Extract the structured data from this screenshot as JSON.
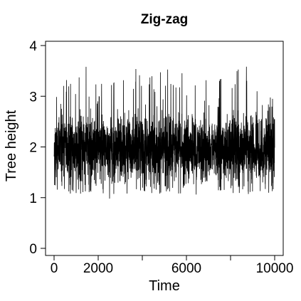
{
  "chart_data": {
    "type": "line",
    "title": "Zig-zag",
    "xlabel": "Time",
    "ylabel": "Tree height",
    "xlim": [
      0,
      10000
    ],
    "ylim": [
      0,
      4
    ],
    "x_ticks": [
      0,
      2000,
      6000,
      10000
    ],
    "x_tick_labels": [
      "0",
      "2000",
      "6000",
      "10000"
    ],
    "x_minor_ticks": [
      4000,
      8000
    ],
    "y_ticks": [
      0,
      1,
      2,
      3,
      4
    ],
    "y_tick_labels": [
      "0",
      "1",
      "2",
      "3",
      "4"
    ],
    "grid": false,
    "series": [
      {
        "color": "#000000",
        "trace_profile": [
          {
            "x": 0,
            "y": 1.95,
            "low": 1.15,
            "high": 3.2
          },
          {
            "x": 500,
            "y": 1.95,
            "low": 0.95,
            "high": 3.3
          },
          {
            "x": 1000,
            "y": 1.95,
            "low": 1.0,
            "high": 3.55
          },
          {
            "x": 1500,
            "y": 1.95,
            "low": 1.1,
            "high": 3.62
          },
          {
            "x": 2000,
            "y": 1.95,
            "low": 1.15,
            "high": 3.3
          },
          {
            "x": 2500,
            "y": 1.95,
            "low": 0.9,
            "high": 3.45
          },
          {
            "x": 3000,
            "y": 1.95,
            "low": 1.05,
            "high": 3.35
          },
          {
            "x": 3500,
            "y": 1.95,
            "low": 1.1,
            "high": 3.65
          },
          {
            "x": 4000,
            "y": 1.95,
            "low": 1.15,
            "high": 3.5
          },
          {
            "x": 4500,
            "y": 1.95,
            "low": 1.05,
            "high": 3.4
          },
          {
            "x": 5000,
            "y": 1.95,
            "low": 1.1,
            "high": 3.6
          },
          {
            "x": 5500,
            "y": 1.95,
            "low": 1.05,
            "high": 3.45
          },
          {
            "x": 6000,
            "y": 1.95,
            "low": 1.1,
            "high": 3.5
          },
          {
            "x": 6500,
            "y": 1.95,
            "low": 1.0,
            "high": 3.6
          },
          {
            "x": 7000,
            "y": 1.95,
            "low": 1.1,
            "high": 3.3
          },
          {
            "x": 7500,
            "y": 1.95,
            "low": 1.15,
            "high": 3.6
          },
          {
            "x": 8000,
            "y": 1.95,
            "low": 1.05,
            "high": 3.4
          },
          {
            "x": 8500,
            "y": 1.95,
            "low": 1.1,
            "high": 3.9
          },
          {
            "x": 9000,
            "y": 1.95,
            "low": 1.0,
            "high": 3.45
          },
          {
            "x": 9500,
            "y": 1.95,
            "low": 1.05,
            "high": 3.1
          },
          {
            "x": 10000,
            "y": 1.95,
            "low": 1.15,
            "high": 3.0
          }
        ]
      }
    ]
  }
}
